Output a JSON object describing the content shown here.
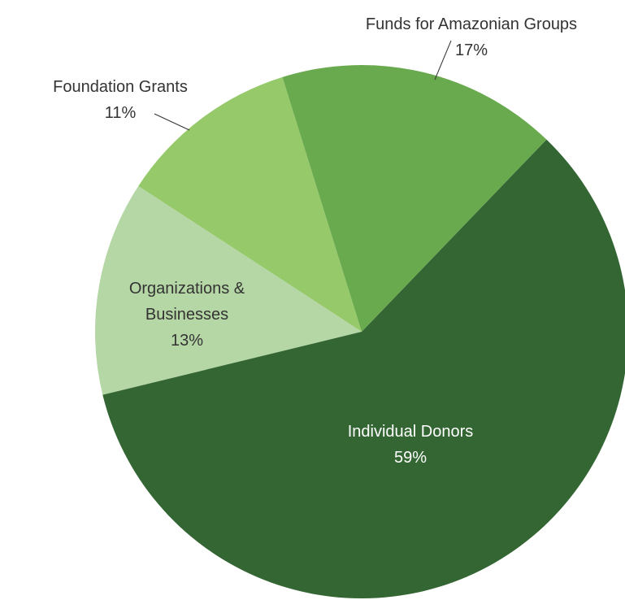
{
  "chart_data": {
    "type": "pie",
    "categories": [
      "Funds for Amazonian Groups",
      "Individual Donors",
      "Organizations & Businesses",
      "Foundation Grants"
    ],
    "values": [
      17,
      59,
      13,
      11
    ],
    "value_labels": [
      "17%",
      "59%",
      "13%",
      "11%"
    ],
    "colors": [
      "#6aaa4f",
      "#336633",
      "#b5d6a5",
      "#96c96a"
    ]
  }
}
